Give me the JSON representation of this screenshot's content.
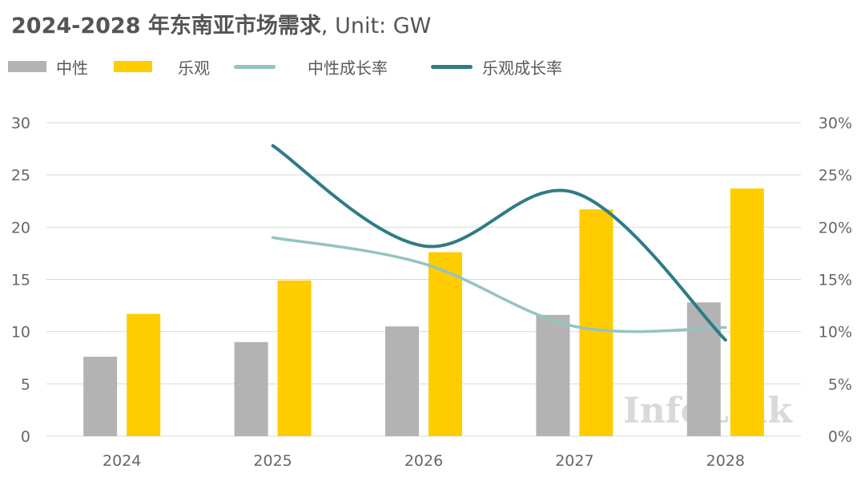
{
  "title_main": "2024-2028 年东南亚市场需求",
  "title_unit": ", Unit: GW",
  "watermark": "InfoLink",
  "colors": {
    "neutral_bar": "#b3b3b3",
    "optimistic_bar": "#ffcc00",
    "neutral_line": "#93c4c0",
    "optimistic_line": "#2f7b86",
    "grid": "#d9d9d9",
    "text": "#666666"
  },
  "legend": [
    {
      "label": "中性",
      "kind": "bar",
      "color": "#b3b3b3"
    },
    {
      "label": "乐观",
      "kind": "bar",
      "color": "#ffcc00"
    },
    {
      "label": "中性成长率",
      "kind": "line",
      "color": "#93c4c0"
    },
    {
      "label": "乐观成长率",
      "kind": "line",
      "color": "#2f7b86"
    }
  ],
  "chart_data": {
    "type": "bar",
    "title": "2024-2028 年东南亚市场需求, Unit: GW",
    "categories": [
      "2024",
      "2025",
      "2026",
      "2027",
      "2028"
    ],
    "series": [
      {
        "name": "中性",
        "type": "bar",
        "axis": "left",
        "values": [
          7.6,
          9.0,
          10.5,
          11.6,
          12.8
        ]
      },
      {
        "name": "乐观",
        "type": "bar",
        "axis": "left",
        "values": [
          11.7,
          14.9,
          17.6,
          21.7,
          23.7
        ]
      },
      {
        "name": "中性成长率",
        "type": "line",
        "axis": "right",
        "smooth": true,
        "values": [
          null,
          19.0,
          16.5,
          10.5,
          10.4
        ]
      },
      {
        "name": "乐观成长率",
        "type": "line",
        "axis": "right",
        "smooth": true,
        "values": [
          null,
          27.8,
          18.2,
          23.3,
          9.2
        ]
      }
    ],
    "y_left": {
      "min": 0,
      "max": 30,
      "ticks": [
        "0",
        "5",
        "10",
        "15",
        "20",
        "25",
        "30"
      ]
    },
    "y_right": {
      "min": 0,
      "max": 30,
      "ticks": [
        "0%",
        "5%",
        "10%",
        "15%",
        "20%",
        "25%",
        "30%"
      ]
    },
    "grid": true,
    "legend_position": "top-left"
  }
}
